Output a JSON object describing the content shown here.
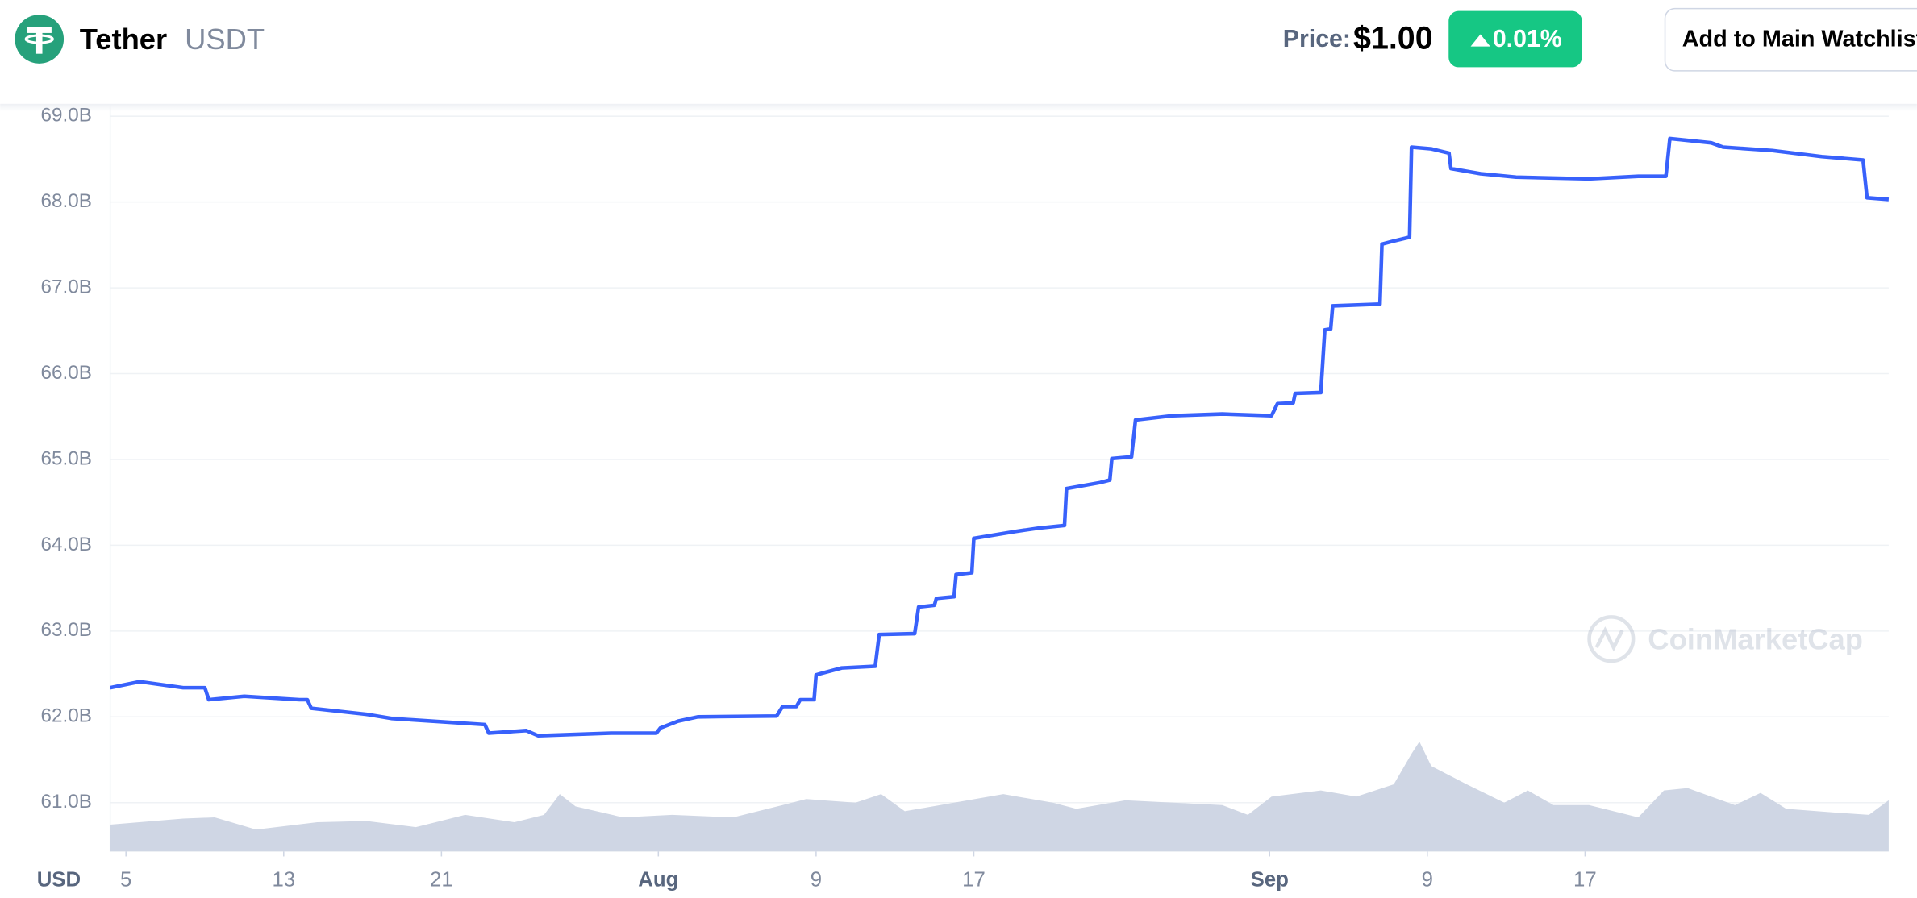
{
  "header": {
    "name": "Tether",
    "symbol": "USDT",
    "price_label": "Price:",
    "price": "$1.00",
    "change": "0.01%",
    "watchlist_button": "Add to Main Watchlist"
  },
  "chart_data": {
    "type": "line",
    "currency": "USD",
    "watermark": "CoinMarketCap",
    "xlim": [
      4.2,
      94.4
    ],
    "xticks": [
      5,
      13,
      21,
      {
        "value": 32,
        "label": "Aug"
      },
      {
        "value": 40,
        "label": "9"
      },
      {
        "value": 48,
        "label": "17"
      },
      {
        "value": 63,
        "label": "Sep"
      },
      {
        "value": 71,
        "label": "9"
      },
      {
        "value": 79,
        "label": "17"
      }
    ],
    "ylim": [
      60.43,
      69.13
    ],
    "yticks": [
      {
        "value": 61,
        "label": "61.0B"
      },
      {
        "value": 62,
        "label": "62.0B"
      },
      {
        "value": 63,
        "label": "63.0B"
      },
      {
        "value": 64,
        "label": "64.0B"
      },
      {
        "value": 65,
        "label": "65.0B"
      },
      {
        "value": 66,
        "label": "66.0B"
      },
      {
        "value": 67,
        "label": "67.0B"
      },
      {
        "value": 68,
        "label": "68.0B"
      },
      {
        "value": 69,
        "label": "69.0B"
      }
    ],
    "y2lim": [
      0,
      611
    ],
    "grid": true,
    "series": [
      {
        "color": "#3861fb",
        "x": [
          4.2,
          5.7,
          7.9,
          9.0,
          9.2,
          11.0,
          13.8,
          14.2,
          14.4,
          17.2,
          18.5,
          23.2,
          23.4,
          25.3,
          25.9,
          29.6,
          31.9,
          32.1,
          33.0,
          34.0,
          38.0,
          38.3,
          39.0,
          39.2,
          39.9,
          40.0,
          41.3,
          43.0,
          43.2,
          45.0,
          45.2,
          46.0,
          46.1,
          47.0,
          47.1,
          47.9,
          48.0,
          50.1,
          51.3,
          52.6,
          52.7,
          54.4,
          54.9,
          55.0,
          56.0,
          56.2,
          58.1,
          60.6,
          63.1,
          63.4,
          64.2,
          64.3,
          65.6,
          65.8,
          66.1,
          66.2,
          68.6,
          68.7,
          69.2,
          70.1,
          70.2,
          71.2,
          72.1,
          72.2,
          73.7,
          75.5,
          79.2,
          81.7,
          83.1,
          83.3,
          85.4,
          86.0,
          88.5,
          91.0,
          93.1,
          93.3,
          94.4
        ],
        "values": [
          62.34,
          62.41,
          62.34,
          62.34,
          62.2,
          62.24,
          62.2,
          62.2,
          62.1,
          62.03,
          61.98,
          61.91,
          61.81,
          61.84,
          61.78,
          61.81,
          61.81,
          61.87,
          61.95,
          62.0,
          62.01,
          62.12,
          62.12,
          62.2,
          62.2,
          62.49,
          62.57,
          62.59,
          62.96,
          62.97,
          63.28,
          63.3,
          63.38,
          63.4,
          63.66,
          63.68,
          64.08,
          64.16,
          64.2,
          64.23,
          64.66,
          64.73,
          64.76,
          65.01,
          65.03,
          65.46,
          65.51,
          65.53,
          65.51,
          65.65,
          65.66,
          65.77,
          65.78,
          66.51,
          66.52,
          66.79,
          66.81,
          67.51,
          67.54,
          67.59,
          68.64,
          68.62,
          68.57,
          68.39,
          68.33,
          68.29,
          68.27,
          68.3,
          68.3,
          68.74,
          68.69,
          68.64,
          68.6,
          68.53,
          68.49,
          68.05,
          68.03
        ]
      },
      {
        "color": "#cfd6e4",
        "axis": "y2",
        "x": [
          4.2,
          7.9,
          9.5,
          11.6,
          14.7,
          17.2,
          19.7,
          22.2,
          24.7,
          26.2,
          27.0,
          27.8,
          30.2,
          32.7,
          35.8,
          38.3,
          39.5,
          42.0,
          43.3,
          44.5,
          47.0,
          49.5,
          52.0,
          53.2,
          55.7,
          58.1,
          60.6,
          61.9,
          63.1,
          65.6,
          67.4,
          69.3,
          70.2,
          70.6,
          71.2,
          73.0,
          74.9,
          76.1,
          77.4,
          79.2,
          81.7,
          83.0,
          84.2,
          85.4,
          86.6,
          87.9,
          89.2,
          91.6,
          93.4,
          94.4
        ],
        "values": [
          22,
          27,
          28,
          18,
          24,
          25,
          20,
          30,
          24,
          30,
          47,
          37,
          28,
          30,
          28,
          38,
          43,
          40,
          47,
          33,
          40,
          47,
          40,
          35,
          42,
          40,
          38,
          30,
          45,
          50,
          45,
          55,
          80,
          90,
          70,
          55,
          40,
          50,
          38,
          38,
          28,
          50,
          52,
          45,
          38,
          48,
          35,
          32,
          30,
          42
        ]
      }
    ]
  }
}
